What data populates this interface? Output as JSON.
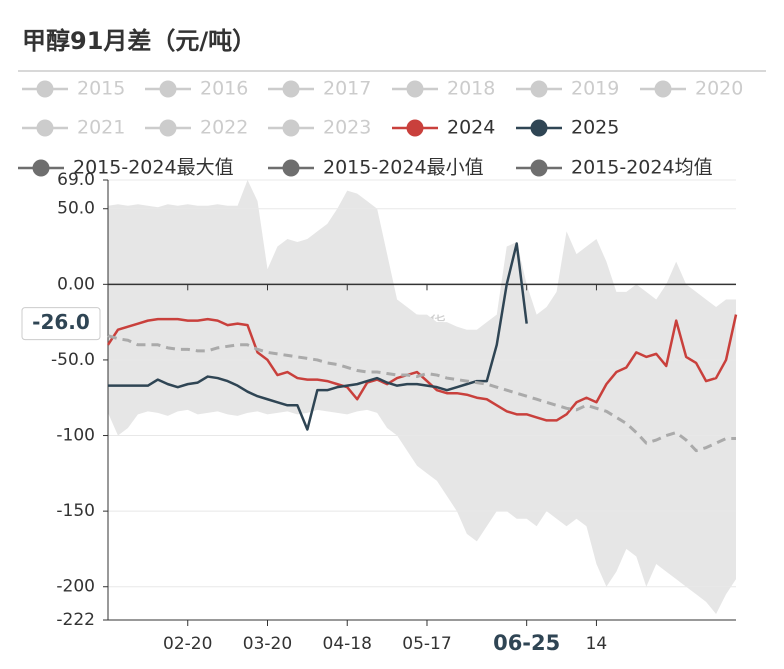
{
  "chart_data": {
    "type": "line",
    "title": "甲醇91月差（元/吨）",
    "watermark": "紫金天风期货",
    "categories": [
      null,
      null,
      null,
      null,
      null,
      null,
      null,
      null,
      "02-20",
      null,
      null,
      null,
      null,
      null,
      null,
      null,
      "03-20",
      null,
      null,
      null,
      null,
      null,
      null,
      null,
      "04-18",
      null,
      null,
      null,
      null,
      null,
      null,
      null,
      "05-17",
      null,
      null,
      null,
      null,
      null,
      null,
      null,
      null,
      null,
      "06-25",
      null,
      null,
      null,
      null,
      null,
      null,
      "14",
      null,
      null,
      null,
      null,
      null,
      null,
      null,
      null,
      null,
      null,
      null,
      null,
      null,
      null
    ],
    "ylim": [
      -222,
      69
    ],
    "yticks": [
      {
        "value": -222,
        "label": "-222"
      },
      -200,
      -150,
      -100,
      {
        "value": -50,
        "label": "-50.0"
      },
      {
        "value": 0,
        "label": "0.00"
      },
      {
        "value": 50,
        "label": "50.0"
      },
      {
        "value": 69,
        "label": "69.0"
      }
    ],
    "zero_line": true,
    "grid": true,
    "pointer": {
      "y": {
        "value": -26,
        "label": "-26.0"
      },
      "x": "06-25"
    },
    "legend": {
      "inactive": [
        "2015",
        "2016",
        "2017",
        "2018",
        "2019",
        "2020",
        "2021",
        "2022",
        "2023"
      ],
      "inactive_color": "#cccccc"
    },
    "series": [
      {
        "name": "2024",
        "color": "#c9403c",
        "kind": "line",
        "values": [
          -40,
          -30,
          -28,
          -26,
          -24,
          -23,
          -23,
          -23,
          -24,
          -24,
          -23,
          -24,
          -27,
          -26,
          -27,
          -45,
          -50,
          -60,
          -58,
          -62,
          -63,
          -63,
          -64,
          -66,
          -68,
          -76,
          -65,
          -63,
          -66,
          -62,
          -60,
          -58,
          -64,
          -70,
          -72,
          -72,
          -73,
          -75,
          -76,
          -80,
          -84,
          -86,
          -86,
          -88,
          -90,
          -90,
          -86,
          -78,
          -75,
          -78,
          -66,
          -58,
          -55,
          -45,
          -48,
          -46,
          -54,
          -24,
          -48,
          -52,
          -64,
          -62,
          -50,
          -20
        ]
      },
      {
        "name": "2025",
        "color": "#2f4554",
        "kind": "line",
        "values": [
          -67,
          -67,
          -67,
          -67,
          -67,
          -63,
          -66,
          -68,
          -66,
          -65,
          -61,
          -62,
          -64,
          -67,
          -71,
          -74,
          -76,
          -78,
          -80,
          -80,
          -96,
          -70,
          -70,
          -68,
          -67,
          -66,
          -64,
          -62,
          -65,
          -67,
          -66,
          -66,
          -67,
          -68,
          -70,
          -68,
          -66,
          -64,
          -64,
          -40,
          0,
          27,
          -26,
          null,
          null,
          null,
          null,
          null,
          null,
          null,
          null,
          null,
          null,
          null,
          null,
          null,
          null,
          null,
          null,
          null,
          null,
          null,
          null,
          null
        ]
      },
      {
        "name": "2015-2024最大值",
        "color": "#6e6e6e",
        "kind": "band-upper",
        "fill": "#e6e6e6",
        "values": [
          52,
          53,
          52,
          53,
          52,
          51,
          53,
          52,
          53,
          52,
          52,
          53,
          52,
          52,
          69,
          55,
          10,
          25,
          30,
          28,
          30,
          35,
          40,
          50,
          62,
          60,
          55,
          50,
          20,
          -10,
          -15,
          -20,
          -20,
          -25,
          -25,
          -28,
          -30,
          -30,
          -25,
          -20,
          25,
          28,
          0,
          -20,
          -15,
          -5,
          35,
          20,
          25,
          30,
          15,
          -5,
          -5,
          0,
          -5,
          -10,
          0,
          15,
          0,
          -5,
          -10,
          -15,
          -10,
          -10
        ]
      },
      {
        "name": "2015-2024最小值",
        "color": "#6e6e6e",
        "kind": "band-lower",
        "fill": "#ffffff",
        "values": [
          -85,
          -100,
          -95,
          -86,
          -84,
          -85,
          -87,
          -84,
          -83,
          -86,
          -85,
          -84,
          -86,
          -87,
          -85,
          -84,
          -86,
          -85,
          -84,
          -86,
          -85,
          -83,
          -84,
          -85,
          -86,
          -84,
          -83,
          -85,
          -95,
          -100,
          -110,
          -120,
          -125,
          -130,
          -140,
          -150,
          -165,
          -170,
          -160,
          -150,
          -150,
          -155,
          -155,
          -160,
          -150,
          -155,
          -160,
          -155,
          -160,
          -185,
          -200,
          -190,
          -175,
          -180,
          -200,
          -185,
          -190,
          -195,
          -200,
          -205,
          -210,
          -218,
          -205,
          -195
        ]
      },
      {
        "name": "2015-2024均值",
        "color": "#6e6e6e",
        "kind": "dashed",
        "stroke": "#aaaaaa",
        "values": [
          -34,
          -36,
          -37,
          -40,
          -40,
          -40,
          -42,
          -43,
          -43,
          -44,
          -44,
          -42,
          -41,
          -40,
          -40,
          -43,
          -45,
          -46,
          -47,
          -48,
          -49,
          -50,
          -52,
          -53,
          -55,
          -57,
          -58,
          -58,
          -59,
          -60,
          -60,
          -61,
          -59,
          -60,
          -62,
          -63,
          -64,
          -65,
          -66,
          -68,
          -70,
          -72,
          -74,
          -76,
          -78,
          -80,
          -82,
          -83,
          -80,
          -82,
          -84,
          -88,
          -92,
          -98,
          -105,
          -103,
          -100,
          -98,
          -103,
          -110,
          -108,
          -105,
          -102,
          -102
        ]
      }
    ]
  }
}
